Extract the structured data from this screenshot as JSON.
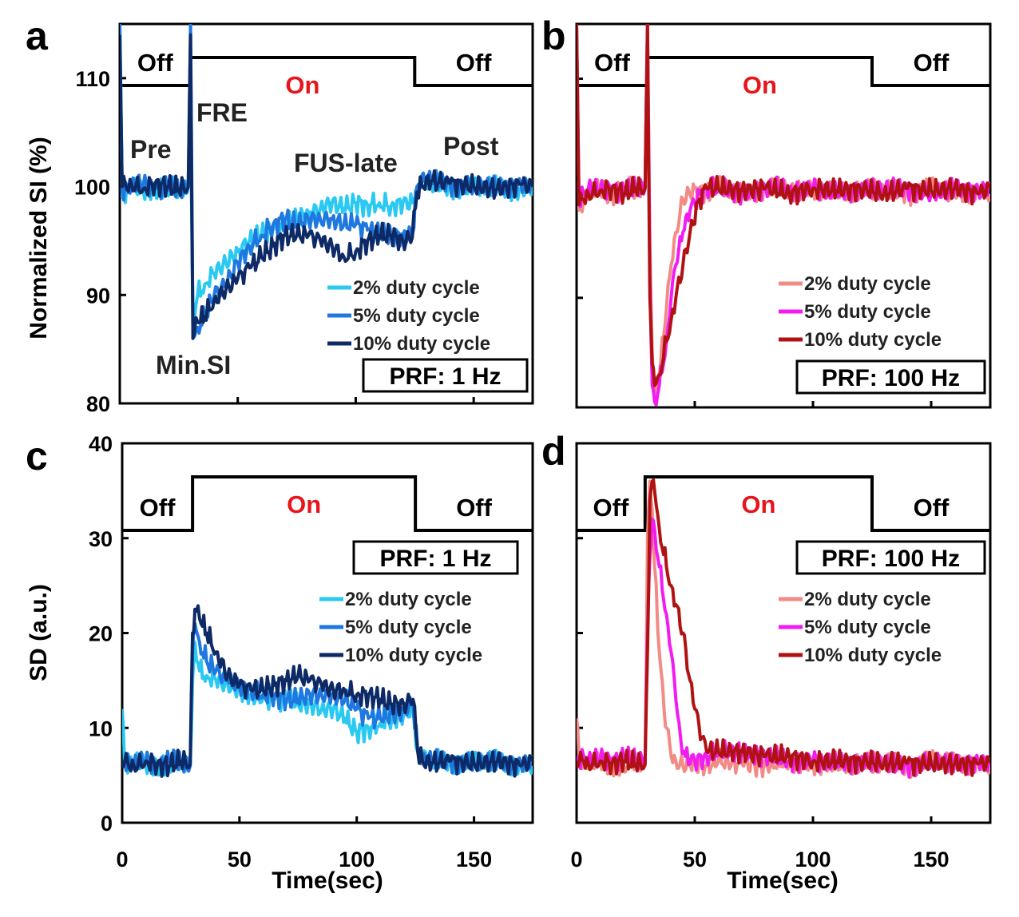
{
  "colors": {
    "on_text": "#e8141c",
    "axes": "#000000",
    "blue_2": "#29c9f2",
    "blue_5": "#1f78e0",
    "blue_10": "#0e2a66",
    "red_2": "#f28b86",
    "red_5": "#f21cf2",
    "red_10": "#b01212"
  },
  "chart_data": [
    {
      "panel": "a",
      "type": "line",
      "xlabel": "",
      "ylabel": "Normalized SI (%)",
      "xlim": [
        0,
        175
      ],
      "ylim": [
        80,
        115
      ],
      "yticks": [
        "80",
        "90",
        "100",
        "110"
      ],
      "xticks": [],
      "fus_state": [
        {
          "label": "Off",
          "start": 0,
          "end": 30
        },
        {
          "label": "On",
          "start": 30,
          "end": 125
        },
        {
          "label": "Off",
          "start": 125,
          "end": 175
        }
      ],
      "annotations": [
        "Pre",
        "FRE",
        "Min.SI",
        "FUS-late",
        "Post"
      ],
      "prf_label": "PRF: 1 Hz",
      "legend": "right",
      "series": [
        {
          "name": "2% duty cycle",
          "color": "#29c9f2",
          "x": [
            0,
            1,
            5,
            10,
            15,
            20,
            25,
            29,
            30,
            31,
            33,
            36,
            40,
            45,
            50,
            55,
            60,
            65,
            70,
            75,
            80,
            85,
            90,
            95,
            100,
            105,
            110,
            115,
            120,
            124,
            126,
            128,
            132,
            140,
            150,
            160,
            170,
            175
          ],
          "y": [
            115,
            99,
            100,
            99.5,
            100,
            99.8,
            99.7,
            100,
            105,
            88,
            90,
            91,
            92,
            93,
            94,
            95,
            95.5,
            96,
            96.5,
            97,
            97.5,
            98,
            98.5,
            98,
            98.5,
            98.3,
            98.5,
            98.2,
            98.5,
            98.5,
            100,
            100.3,
            100.2,
            100,
            99.8,
            100,
            99.7,
            100
          ]
        },
        {
          "name": "5% duty cycle",
          "color": "#1f78e0",
          "x": [
            0,
            1,
            5,
            10,
            15,
            20,
            25,
            29,
            30,
            31,
            33,
            36,
            40,
            45,
            50,
            55,
            60,
            65,
            70,
            75,
            80,
            85,
            90,
            95,
            100,
            105,
            110,
            115,
            120,
            124,
            126,
            128,
            132,
            140,
            150,
            160,
            170,
            175
          ],
          "y": [
            115,
            99.5,
            100,
            100.2,
            99.8,
            100,
            99.5,
            100,
            115,
            86,
            87,
            88,
            90,
            91,
            93,
            94.5,
            95.5,
            96.5,
            97,
            96.5,
            97,
            97,
            97,
            96.5,
            96.5,
            96,
            95.5,
            95.5,
            95.5,
            95.5,
            100,
            101,
            100.5,
            100.2,
            100,
            100,
            100.2,
            100
          ]
        },
        {
          "name": "10% duty cycle",
          "color": "#0e2a66",
          "x": [
            0,
            1,
            5,
            10,
            15,
            20,
            25,
            29,
            30,
            31,
            33,
            36,
            40,
            45,
            50,
            55,
            60,
            65,
            70,
            75,
            80,
            85,
            90,
            95,
            100,
            105,
            110,
            115,
            120,
            124,
            126,
            128,
            132,
            140,
            150,
            160,
            170,
            175
          ],
          "y": [
            114,
            100,
            100.2,
            99.8,
            100.3,
            100,
            99.8,
            100,
            114,
            86,
            87.5,
            88,
            89.5,
            90.5,
            91.5,
            92.5,
            93.5,
            94.5,
            95.5,
            95.5,
            95.5,
            95,
            94.5,
            93.5,
            94,
            95,
            95.5,
            95.5,
            95,
            95.3,
            99.5,
            100.2,
            100.5,
            100.3,
            100,
            99.8,
            100.2,
            100
          ]
        }
      ]
    },
    {
      "panel": "b",
      "type": "line",
      "xlabel": "",
      "ylabel": "",
      "xlim": [
        0,
        175
      ],
      "ylim": [
        80,
        115
      ],
      "yticks": [],
      "xticks": [],
      "fus_state": [
        {
          "label": "Off",
          "start": 0,
          "end": 30
        },
        {
          "label": "On",
          "start": 30,
          "end": 125
        },
        {
          "label": "Off",
          "start": 125,
          "end": 175
        }
      ],
      "annotations": [],
      "prf_label": "PRF: 100 Hz",
      "legend": "right",
      "series": [
        {
          "name": "2% duty cycle",
          "color": "#f28b86",
          "x": [
            0,
            1,
            3,
            5,
            10,
            15,
            20,
            25,
            29,
            30,
            31,
            32,
            33,
            35,
            38,
            40,
            42,
            45,
            50,
            55,
            60,
            70,
            80,
            90,
            100,
            110,
            120,
            130,
            140,
            150,
            160,
            170,
            175
          ],
          "y": [
            115,
            98,
            99,
            99.5,
            100,
            99.5,
            100,
            99.8,
            100,
            114,
            95,
            85,
            81,
            83,
            89,
            93,
            96,
            99,
            100,
            99.5,
            100,
            99.5,
            100,
            99.8,
            100,
            99.5,
            100,
            99.8,
            99.5,
            100,
            99.5,
            100,
            99.5
          ]
        },
        {
          "name": "5% duty cycle",
          "color": "#f21cf2",
          "x": [
            0,
            1,
            3,
            5,
            10,
            15,
            20,
            25,
            29,
            30,
            31,
            32,
            33,
            35,
            38,
            40,
            42,
            45,
            48,
            52,
            55,
            60,
            70,
            80,
            90,
            100,
            110,
            120,
            130,
            140,
            150,
            160,
            170,
            175
          ],
          "y": [
            115,
            99,
            99.5,
            100,
            99.8,
            100,
            99.5,
            100,
            100,
            115,
            92,
            82,
            80.5,
            82,
            86,
            90,
            93,
            96,
            98,
            99.5,
            100,
            100,
            99.5,
            100,
            99.8,
            100,
            99.5,
            100,
            99.8,
            100,
            99.5,
            100,
            99.8,
            100
          ]
        },
        {
          "name": "10% duty cycle",
          "color": "#b01212",
          "x": [
            0,
            1,
            3,
            5,
            10,
            15,
            20,
            25,
            29,
            30,
            31,
            32,
            33,
            35,
            38,
            40,
            42,
            45,
            48,
            52,
            55,
            60,
            70,
            80,
            90,
            100,
            110,
            120,
            130,
            140,
            150,
            160,
            170,
            175
          ],
          "y": [
            115,
            98.5,
            99,
            99.5,
            99.8,
            100,
            99.5,
            100,
            100,
            115,
            90,
            84,
            82,
            83,
            86,
            88,
            90,
            93,
            96,
            99,
            100,
            100,
            99.8,
            100,
            99.5,
            100,
            99.8,
            100,
            99.5,
            100,
            99.8,
            100,
            99.5,
            100
          ]
        }
      ]
    },
    {
      "panel": "c",
      "type": "line",
      "xlabel": "Time(sec)",
      "ylabel": "SD (a.u.)",
      "xlim": [
        0,
        175
      ],
      "ylim": [
        0,
        40
      ],
      "yticks": [
        "0",
        "10",
        "20",
        "30",
        "40"
      ],
      "xticks": [
        "0",
        "50",
        "100",
        "150"
      ],
      "fus_state": [
        {
          "label": "Off",
          "start": 0,
          "end": 30
        },
        {
          "label": "On",
          "start": 30,
          "end": 125
        },
        {
          "label": "Off",
          "start": 125,
          "end": 175
        }
      ],
      "annotations": [],
      "prf_label": "PRF: 1 Hz",
      "legend": "right",
      "series": [
        {
          "name": "2% duty cycle",
          "color": "#29c9f2",
          "x": [
            0,
            1,
            5,
            10,
            15,
            20,
            25,
            29,
            30,
            31,
            33,
            36,
            40,
            45,
            50,
            55,
            60,
            65,
            70,
            75,
            80,
            85,
            90,
            95,
            100,
            105,
            110,
            115,
            120,
            124,
            126,
            128,
            132,
            140,
            150,
            160,
            170,
            175
          ],
          "y": [
            12,
            6,
            6.5,
            6,
            6.3,
            6,
            6.5,
            6,
            15,
            19,
            16,
            15.5,
            15,
            14.5,
            14,
            13.5,
            13,
            13,
            13,
            12.5,
            12.5,
            12,
            12,
            11,
            9.5,
            10,
            10.5,
            11,
            11.5,
            12,
            7.5,
            7,
            6.5,
            6.5,
            6.3,
            6.5,
            6.2,
            6
          ]
        },
        {
          "name": "5% duty cycle",
          "color": "#1f78e0",
          "x": [
            0,
            1,
            5,
            10,
            15,
            20,
            25,
            29,
            30,
            31,
            33,
            36,
            40,
            45,
            50,
            55,
            60,
            65,
            70,
            75,
            80,
            85,
            90,
            95,
            100,
            105,
            110,
            115,
            120,
            124,
            126,
            128,
            132,
            140,
            150,
            160,
            170,
            175
          ],
          "y": [
            6,
            6.5,
            6.2,
            6.5,
            6,
            6.5,
            6.2,
            6,
            18,
            21,
            19,
            17,
            16,
            15,
            14.5,
            14,
            13.5,
            13.5,
            13,
            13,
            13.5,
            13.5,
            13.5,
            13,
            12,
            11,
            11,
            11.5,
            12,
            12.5,
            7.5,
            7,
            6.5,
            6.5,
            6.3,
            6.5,
            6.2,
            6.5
          ]
        },
        {
          "name": "10% duty cycle",
          "color": "#0e2a66",
          "x": [
            0,
            1,
            5,
            10,
            15,
            20,
            25,
            29,
            30,
            31,
            33,
            36,
            40,
            45,
            50,
            55,
            60,
            65,
            70,
            75,
            80,
            85,
            90,
            95,
            100,
            105,
            110,
            115,
            120,
            124,
            126,
            128,
            132,
            140,
            150,
            160,
            170,
            175
          ],
          "y": [
            6.5,
            6.3,
            6,
            6.5,
            6.2,
            6,
            6.5,
            6.2,
            20,
            22.5,
            21.5,
            20,
            18,
            15.5,
            14.5,
            14,
            14,
            14.5,
            15,
            15.5,
            15,
            14.5,
            14,
            14,
            13.5,
            13.5,
            13,
            12.5,
            12.5,
            13,
            7.5,
            6.5,
            6.3,
            6.5,
            6.2,
            6.5,
            6,
            6.5
          ]
        }
      ]
    },
    {
      "panel": "d",
      "type": "line",
      "xlabel": "Time(sec)",
      "ylabel": "",
      "xlim": [
        0,
        175
      ],
      "ylim": [
        0,
        40
      ],
      "yticks": [],
      "xticks": [
        "0",
        "50",
        "100",
        "150"
      ],
      "fus_state": [
        {
          "label": "Off",
          "start": 0,
          "end": 29
        },
        {
          "label": "On",
          "start": 29,
          "end": 125
        },
        {
          "label": "Off",
          "start": 125,
          "end": 175
        }
      ],
      "annotations": [],
      "prf_label": "PRF: 100 Hz",
      "legend": "right",
      "series": [
        {
          "name": "2% duty cycle",
          "color": "#f28b86",
          "x": [
            0,
            1,
            3,
            5,
            10,
            15,
            20,
            25,
            29,
            30,
            31,
            32,
            33,
            35,
            37,
            40,
            42,
            45,
            50,
            55,
            60,
            70,
            80,
            90,
            100,
            110,
            120,
            130,
            140,
            150,
            160,
            170,
            175
          ],
          "y": [
            11,
            7,
            6.5,
            6,
            6.5,
            6.2,
            6,
            6.5,
            6,
            30,
            36,
            33,
            27,
            18,
            12,
            7,
            6.5,
            6,
            6.5,
            6,
            6.5,
            6.2,
            6,
            6.5,
            6.2,
            6,
            6.5,
            6.2,
            6,
            6.5,
            6.2,
            6.5,
            6
          ]
        },
        {
          "name": "5% duty cycle",
          "color": "#f21cf2",
          "x": [
            0,
            1,
            3,
            5,
            10,
            15,
            20,
            25,
            29,
            30,
            31,
            32,
            33,
            35,
            38,
            40,
            42,
            44,
            46,
            50,
            55,
            60,
            70,
            80,
            90,
            100,
            110,
            120,
            130,
            140,
            150,
            160,
            170,
            175
          ],
          "y": [
            7,
            6.5,
            7,
            6.5,
            6.8,
            6.5,
            6.8,
            6.5,
            6.5,
            20,
            28,
            32,
            31,
            27,
            22,
            18,
            13,
            9,
            7,
            6.5,
            7,
            7.5,
            7.5,
            7,
            6.5,
            6.5,
            6.2,
            6.5,
            6.2,
            6,
            6.5,
            6.2,
            6.5,
            6
          ]
        },
        {
          "name": "10% duty cycle",
          "color": "#b01212",
          "x": [
            0,
            1,
            3,
            5,
            10,
            15,
            20,
            25,
            29,
            30,
            31,
            32,
            33,
            35,
            38,
            40,
            42,
            45,
            48,
            50,
            53,
            55,
            60,
            70,
            80,
            90,
            100,
            110,
            120,
            130,
            140,
            150,
            160,
            170,
            175
          ],
          "y": [
            6.5,
            6.3,
            6.5,
            6.2,
            6.5,
            6.3,
            6.5,
            6.2,
            6.2,
            18,
            34,
            36,
            35,
            31,
            27,
            25,
            23,
            20,
            15,
            12,
            9,
            7.5,
            7.5,
            7.5,
            7,
            7,
            6.5,
            6.5,
            6.5,
            6.3,
            6.3,
            6.2,
            6.2,
            6.2,
            6.3
          ]
        }
      ]
    }
  ]
}
